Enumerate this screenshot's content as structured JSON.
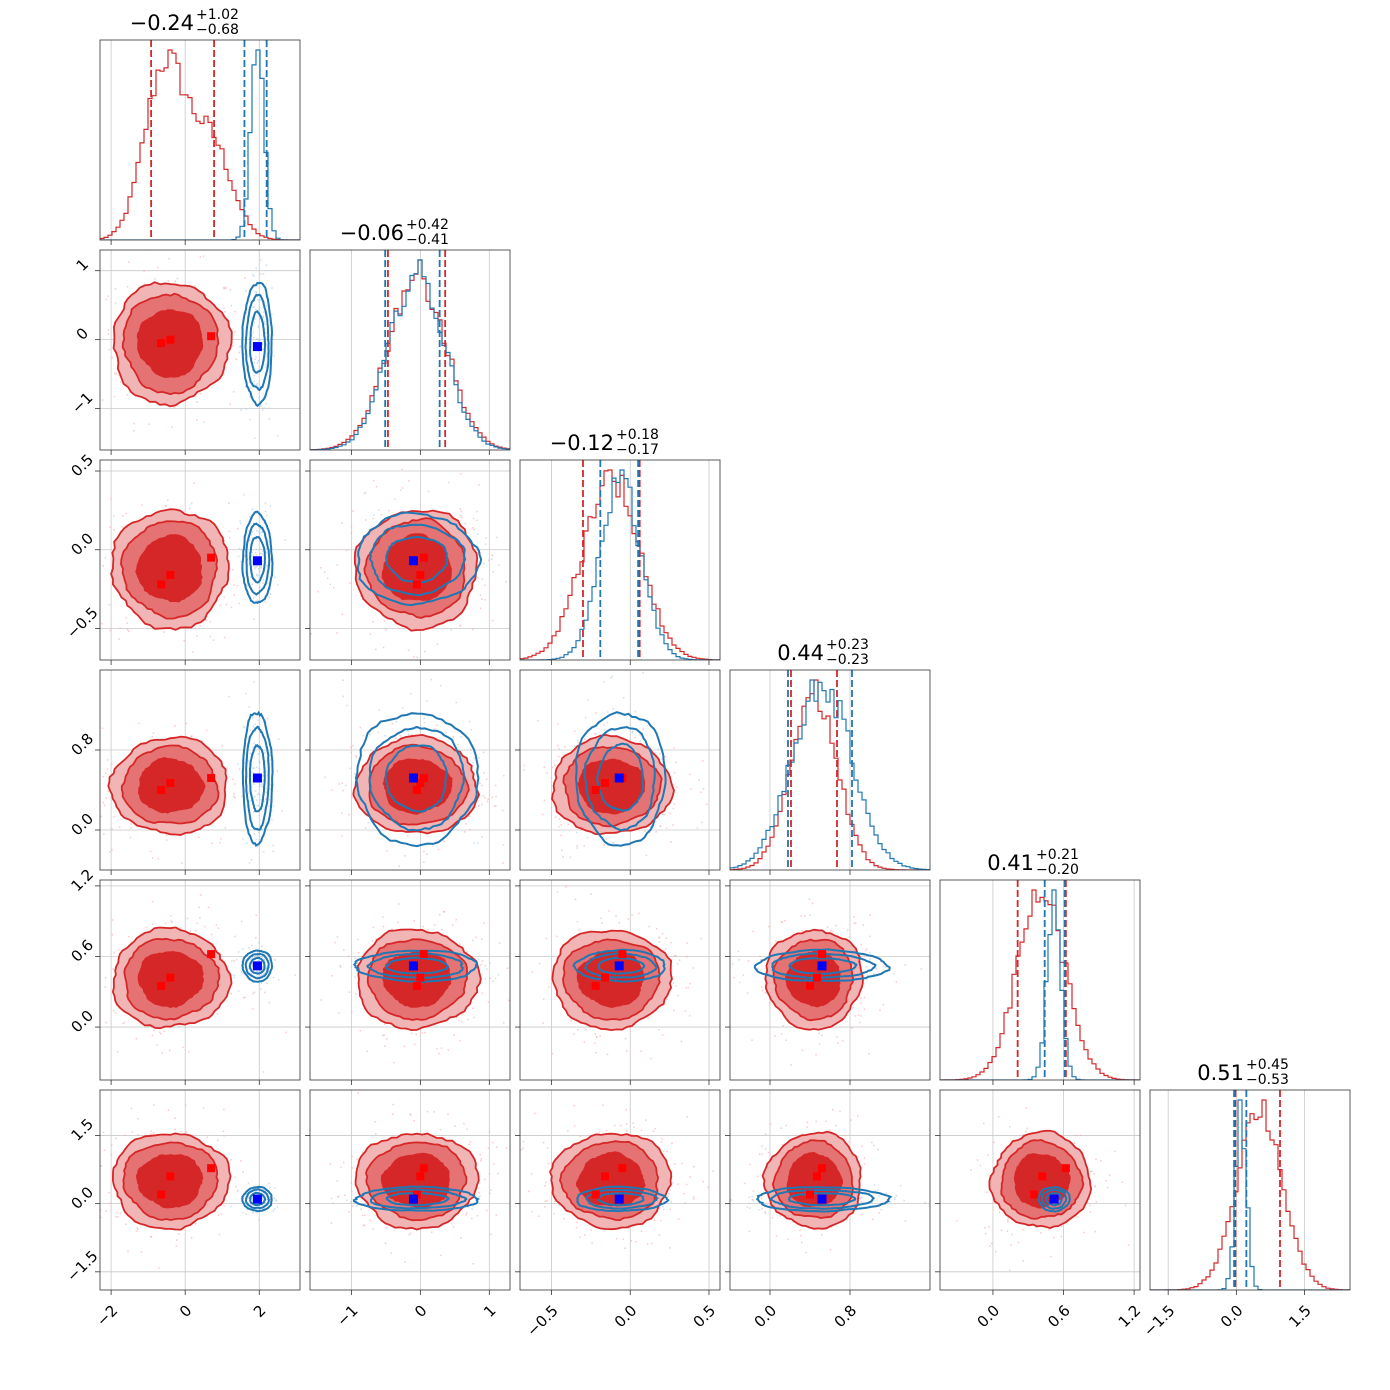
{
  "chart_data": {
    "type": "corner",
    "grid": true,
    "colors": {
      "red": "#d62728",
      "blue": "#1f77b4",
      "marker_red": "#ff0000",
      "marker_blue": "#0000ff"
    },
    "parameters": [
      {
        "range": [
          -2.3,
          3.1
        ],
        "ticks": [
          -2,
          0,
          2
        ],
        "tick_labels": [
          "−2",
          "0",
          "2"
        ],
        "title": {
          "median": "−0.24",
          "plus": "+1.02",
          "minus": "−0.68"
        },
        "red": {
          "mean": -0.4,
          "sd": 0.75,
          "q16": -0.92,
          "q84": 0.78,
          "shape": "wide"
        },
        "blue": {
          "mean": 1.95,
          "sd": 0.18,
          "q16": 1.6,
          "q84": 2.2,
          "shape": "narrow"
        },
        "truth": 1.95,
        "red_markers": [
          -0.65,
          -0.4,
          0.7
        ]
      },
      {
        "range": [
          -1.6,
          1.3
        ],
        "ticks": [
          -1,
          0,
          1
        ],
        "tick_labels": [
          "−1",
          "0",
          "1"
        ],
        "title": {
          "median": "−0.06",
          "plus": "+0.42",
          "minus": "−0.41"
        },
        "red": {
          "mean": -0.05,
          "sd": 0.42,
          "q16": -0.47,
          "q84": 0.36
        },
        "blue": {
          "mean": -0.05,
          "sd": 0.4,
          "q16": -0.51,
          "q84": 0.28
        },
        "truth": -0.1,
        "red_markers": [
          -0.05,
          0.0,
          0.05
        ]
      },
      {
        "range": [
          -0.7,
          0.57
        ],
        "ticks": [
          -0.5,
          0.0,
          0.5
        ],
        "tick_labels": [
          "−0.5",
          "0.0",
          "0.5"
        ],
        "title": {
          "median": "−0.12",
          "plus": "+0.18",
          "minus": "−0.17"
        },
        "red": {
          "mean": -0.12,
          "sd": 0.18,
          "q16": -0.3,
          "q84": 0.06
        },
        "blue": {
          "mean": -0.06,
          "sd": 0.13,
          "q16": -0.19,
          "q84": 0.05
        },
        "truth": -0.07,
        "red_markers": [
          -0.22,
          -0.16,
          -0.05
        ]
      },
      {
        "range": [
          -0.4,
          1.6
        ],
        "ticks": [
          0.0,
          0.8
        ],
        "tick_labels": [
          "0.0",
          "0.8"
        ],
        "title": {
          "median": "0.44",
          "plus": "+0.23",
          "minus": "−0.23"
        },
        "red": {
          "mean": 0.44,
          "sd": 0.23,
          "q16": 0.21,
          "q84": 0.67
        },
        "blue": {
          "mean": 0.52,
          "sd": 0.3,
          "q16": 0.18,
          "q84": 0.82
        },
        "truth": 0.52,
        "red_markers": [
          0.4,
          0.47,
          0.52
        ]
      },
      {
        "range": [
          -0.45,
          1.25
        ],
        "ticks": [
          0.0,
          0.6,
          1.2
        ],
        "tick_labels": [
          "0.0",
          "0.6",
          "1.2"
        ],
        "title": {
          "median": "0.41",
          "plus": "+0.21",
          "minus": "−0.20"
        },
        "red": {
          "mean": 0.41,
          "sd": 0.2,
          "q16": 0.21,
          "q84": 0.62
        },
        "blue": {
          "mean": 0.52,
          "sd": 0.06,
          "q16": 0.44,
          "q84": 0.61
        },
        "truth": 0.52,
        "red_markers": [
          0.35,
          0.42,
          0.62
        ]
      },
      {
        "range": [
          -1.9,
          2.5
        ],
        "ticks": [
          -1.5,
          0.0,
          1.5
        ],
        "tick_labels": [
          "−1.5",
          "0.0",
          "1.5"
        ],
        "title": {
          "median": "0.51",
          "plus": "+0.45",
          "minus": "−0.53"
        },
        "red": {
          "mean": 0.51,
          "sd": 0.5,
          "q16": -0.02,
          "q84": 0.96
        },
        "blue": {
          "mean": 0.1,
          "sd": 0.12,
          "q16": -0.05,
          "q84": 0.22
        },
        "truth": 0.1,
        "red_markers": [
          0.2,
          0.6,
          0.78
        ]
      }
    ]
  }
}
